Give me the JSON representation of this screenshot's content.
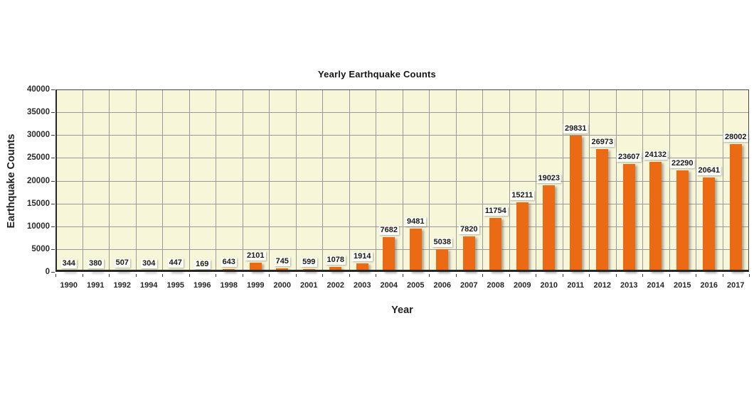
{
  "chart_data": {
    "type": "bar",
    "title": "Yearly Earthquake Counts",
    "xlabel": "Year",
    "ylabel": "Earthquake Counts",
    "categories": [
      "1990",
      "1991",
      "1992",
      "1994",
      "1995",
      "1996",
      "1998",
      "1999",
      "2000",
      "2001",
      "2002",
      "2003",
      "2004",
      "2005",
      "2006",
      "2007",
      "2008",
      "2009",
      "2010",
      "2011",
      "2012",
      "2013",
      "2014",
      "2015",
      "2016",
      "2017"
    ],
    "values": [
      344,
      380,
      507,
      304,
      447,
      169,
      643,
      2101,
      745,
      599,
      1078,
      1914,
      7682,
      9481,
      5038,
      7820,
      11754,
      15211,
      19023,
      29831,
      26973,
      23607,
      24132,
      22290,
      20641,
      28002
    ],
    "data_labels_visible": true,
    "ylim": [
      0,
      40000
    ],
    "ytick_step": 5000,
    "yticks": [
      0,
      5000,
      10000,
      15000,
      20000,
      25000,
      30000,
      35000,
      40000
    ],
    "grid": "both",
    "legend": "none",
    "colors": {
      "bar": "#EC6A13",
      "plot_background": "#F7F6D9",
      "gridline": "#9A9A9A",
      "axis_frame": "#4A4A4A",
      "label_text": "#1A1A1A",
      "page_background": "#FFFFFF"
    }
  }
}
